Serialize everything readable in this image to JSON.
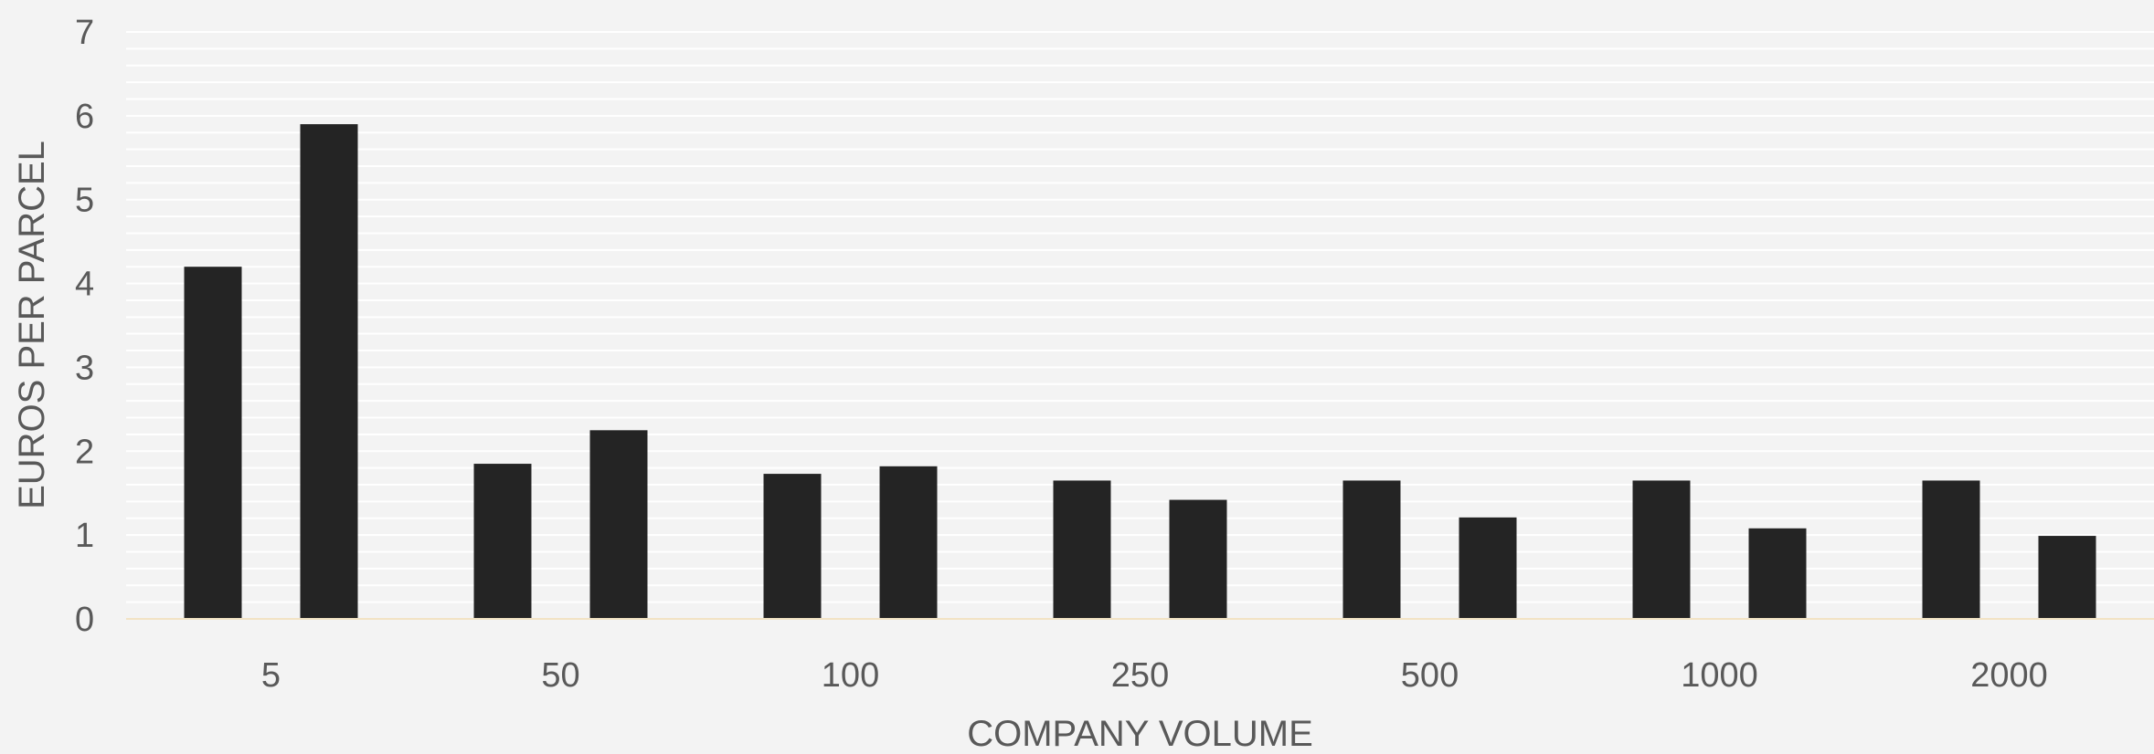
{
  "chart_data": {
    "type": "bar",
    "categories": [
      "5",
      "50",
      "100",
      "250",
      "500",
      "1000",
      "2000"
    ],
    "series": [
      {
        "values": [
          4.2,
          1.85,
          1.73,
          1.65,
          1.65,
          1.65,
          1.65
        ]
      },
      {
        "values": [
          5.9,
          2.25,
          1.82,
          1.42,
          1.21,
          1.08,
          0.99
        ]
      }
    ],
    "xlabel": "COMPANY VOLUME",
    "ylabel": "EUROS PER PARCEL",
    "ylim": [
      0,
      7
    ],
    "yticks": [
      "0",
      "1",
      "2",
      "3",
      "4",
      "5",
      "6",
      "7"
    ],
    "grid": true,
    "colors": {
      "background": "#f3f3f3",
      "bar": "#242424",
      "gridline": "#ffffff",
      "baseline": "#f2e3c4",
      "text": "#595959"
    }
  }
}
